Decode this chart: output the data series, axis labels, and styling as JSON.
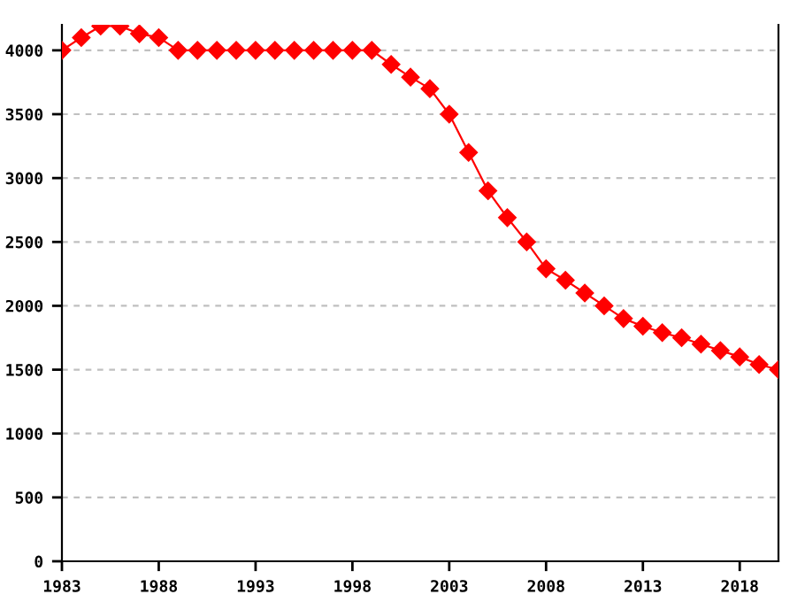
{
  "chart_data": {
    "type": "line",
    "x": [
      1983,
      1984,
      1985,
      1986,
      1987,
      1988,
      1989,
      1990,
      1991,
      1992,
      1993,
      1994,
      1995,
      1996,
      1997,
      1998,
      1999,
      2000,
      2001,
      2002,
      2003,
      2004,
      2005,
      2006,
      2007,
      2008,
      2009,
      2010,
      2011,
      2012,
      2013,
      2014,
      2015,
      2016,
      2017,
      2018,
      2019,
      2020
    ],
    "series": [
      {
        "color": "#ff0000",
        "values": [
          4000,
          4100,
          4190,
          4190,
          4130,
          4100,
          4000,
          4000,
          4000,
          4000,
          4000,
          4000,
          4000,
          4000,
          4000,
          4000,
          4000,
          3890,
          3790,
          3700,
          3500,
          3200,
          2900,
          2690,
          2500,
          2290,
          2200,
          2100,
          2000,
          1900,
          1840,
          1790,
          1750,
          1700,
          1650,
          1600,
          1540,
          1500
        ]
      }
    ],
    "xlim": [
      1983,
      2020
    ],
    "xticks": [
      1983,
      1988,
      1993,
      1998,
      2003,
      2008,
      2013,
      2018
    ],
    "ylim": [
      0,
      4200
    ],
    "yticks": [
      0,
      500,
      1000,
      1500,
      2000,
      2500,
      3000,
      3500,
      4000
    ],
    "grid": "y",
    "marker": "diamond",
    "line_style": "solid",
    "legend": false
  }
}
